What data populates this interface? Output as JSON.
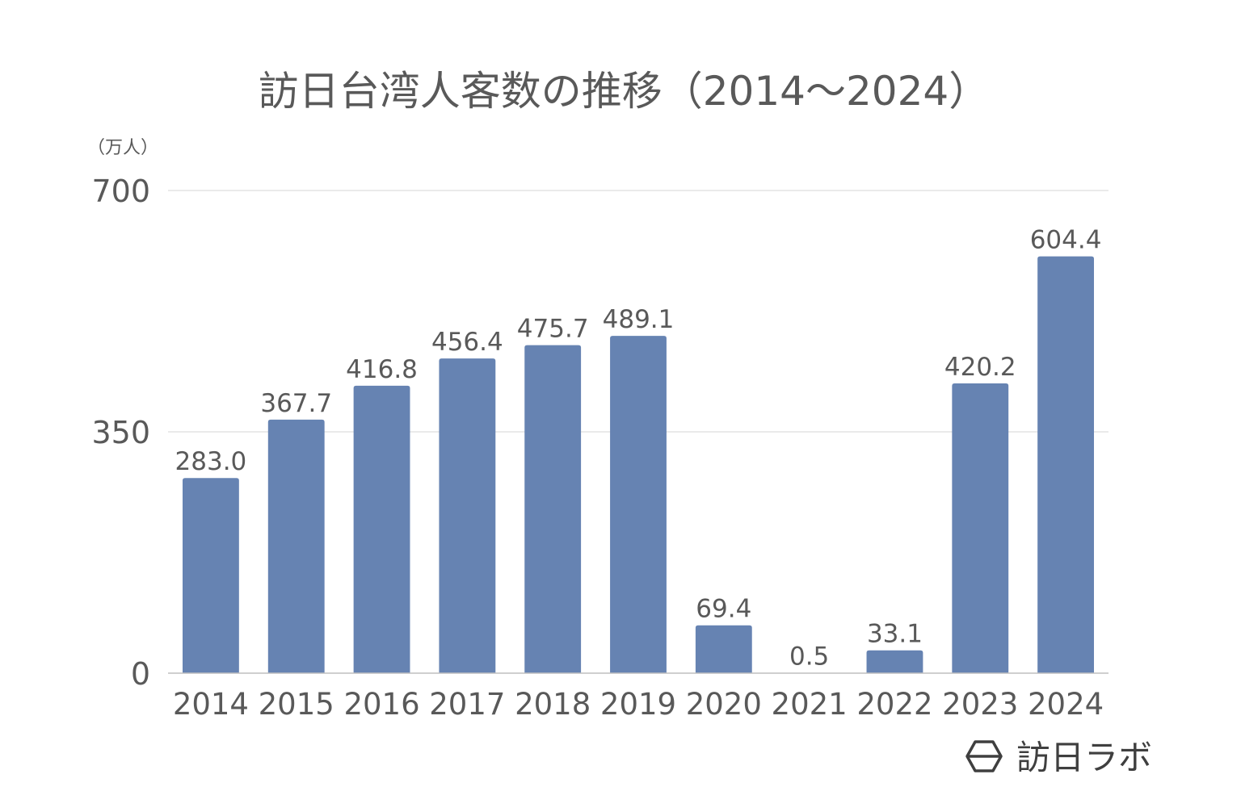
{
  "chart_data": {
    "type": "bar",
    "title": "訪日台湾人客数の推移（2014～2024）",
    "unit_label": "（万人）",
    "categories": [
      "2014",
      "2015",
      "2016",
      "2017",
      "2018",
      "2019",
      "2020",
      "2021",
      "2022",
      "2023",
      "2024"
    ],
    "values": [
      283.0,
      367.7,
      416.8,
      456.4,
      475.7,
      489.1,
      69.4,
      0.5,
      33.1,
      420.2,
      604.4
    ],
    "value_labels": [
      "283.0",
      "367.7",
      "416.8",
      "456.4",
      "475.7",
      "489.1",
      "69.4",
      "0.5",
      "33.1",
      "420.2",
      "604.4"
    ],
    "y_ticks": [
      "0",
      "350",
      "700"
    ],
    "ylim": [
      0,
      700
    ],
    "grid": true,
    "legend": "none",
    "bar_color": "#6683b2"
  },
  "branding": {
    "name": "訪日ラボ",
    "icon": "hexagon-logo-icon"
  }
}
